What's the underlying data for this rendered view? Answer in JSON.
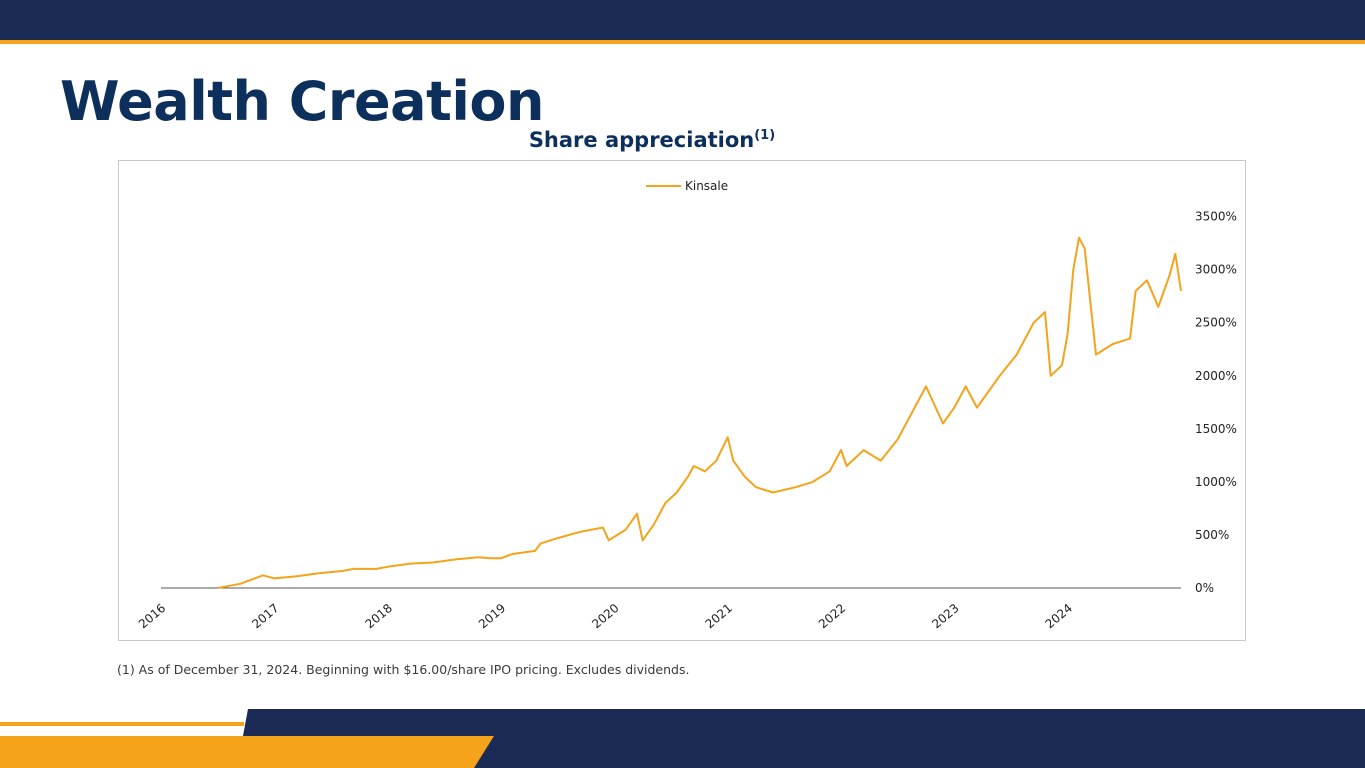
{
  "header": {
    "title": "Wealth Creation"
  },
  "chart_data": {
    "type": "line",
    "title": "Share appreciation",
    "title_footnote_marker": "(1)",
    "legend_position": "top-center",
    "grid": false,
    "ylim": [
      0,
      3600
    ],
    "y_ticks": [
      0,
      500,
      1000,
      1500,
      2000,
      2500,
      3000,
      3500
    ],
    "y_tick_labels": [
      "0%",
      "500%",
      "1000%",
      "1500%",
      "2000%",
      "2500%",
      "3000%",
      "3500%"
    ],
    "xlim": [
      2016.0,
      2025.0
    ],
    "x_tick_labels": [
      "2016",
      "2017",
      "2018",
      "2019",
      "2020",
      "2021",
      "2022",
      "2023",
      "2024"
    ],
    "series": [
      {
        "name": "Kinsale",
        "color": "#f5a31a",
        "points": [
          [
            2016.5,
            0
          ],
          [
            2016.7,
            40
          ],
          [
            2016.9,
            120
          ],
          [
            2017.0,
            90
          ],
          [
            2017.2,
            110
          ],
          [
            2017.4,
            140
          ],
          [
            2017.6,
            160
          ],
          [
            2017.7,
            180
          ],
          [
            2017.9,
            180
          ],
          [
            2018.0,
            200
          ],
          [
            2018.2,
            230
          ],
          [
            2018.4,
            240
          ],
          [
            2018.6,
            270
          ],
          [
            2018.8,
            290
          ],
          [
            2018.9,
            280
          ],
          [
            2019.0,
            280
          ],
          [
            2019.1,
            320
          ],
          [
            2019.3,
            350
          ],
          [
            2019.35,
            420
          ],
          [
            2019.5,
            470
          ],
          [
            2019.7,
            530
          ],
          [
            2019.9,
            570
          ],
          [
            2019.95,
            450
          ],
          [
            2020.1,
            550
          ],
          [
            2020.2,
            700
          ],
          [
            2020.25,
            450
          ],
          [
            2020.35,
            600
          ],
          [
            2020.45,
            800
          ],
          [
            2020.55,
            900
          ],
          [
            2020.65,
            1050
          ],
          [
            2020.7,
            1150
          ],
          [
            2020.8,
            1100
          ],
          [
            2020.9,
            1200
          ],
          [
            2021.0,
            1420
          ],
          [
            2021.05,
            1200
          ],
          [
            2021.15,
            1050
          ],
          [
            2021.25,
            950
          ],
          [
            2021.4,
            900
          ],
          [
            2021.6,
            950
          ],
          [
            2021.75,
            1000
          ],
          [
            2021.9,
            1100
          ],
          [
            2022.0,
            1300
          ],
          [
            2022.05,
            1150
          ],
          [
            2022.2,
            1300
          ],
          [
            2022.35,
            1200
          ],
          [
            2022.5,
            1400
          ],
          [
            2022.6,
            1600
          ],
          [
            2022.75,
            1900
          ],
          [
            2022.9,
            1550
          ],
          [
            2023.0,
            1700
          ],
          [
            2023.1,
            1900
          ],
          [
            2023.2,
            1700
          ],
          [
            2023.4,
            2000
          ],
          [
            2023.55,
            2200
          ],
          [
            2023.7,
            2500
          ],
          [
            2023.8,
            2600
          ],
          [
            2023.85,
            2000
          ],
          [
            2023.95,
            2100
          ],
          [
            2024.0,
            2400
          ],
          [
            2024.05,
            3000
          ],
          [
            2024.1,
            3300
          ],
          [
            2024.15,
            3200
          ],
          [
            2024.2,
            2700
          ],
          [
            2024.25,
            2200
          ],
          [
            2024.4,
            2300
          ],
          [
            2024.55,
            2350
          ],
          [
            2024.6,
            2800
          ],
          [
            2024.7,
            2900
          ],
          [
            2024.8,
            2650
          ],
          [
            2024.9,
            2950
          ],
          [
            2024.95,
            3150
          ],
          [
            2025.0,
            2800
          ]
        ]
      }
    ]
  },
  "footnote": "(1) As of December 31, 2024. Beginning with $16.00/share IPO pricing. Excludes dividends.",
  "colors": {
    "navy": "#1b2b55",
    "accent": "#f5a31a",
    "title": "#0d2f5c"
  }
}
